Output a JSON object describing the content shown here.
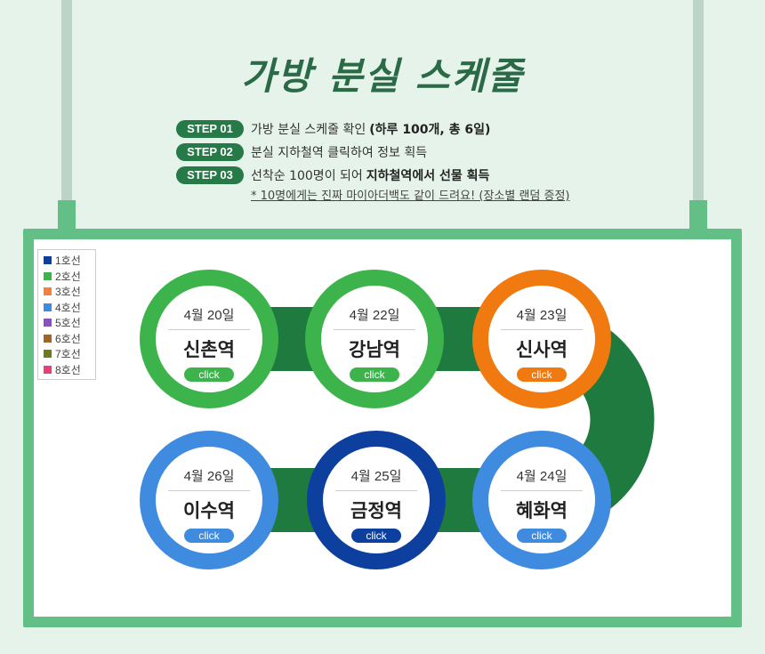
{
  "title": "가방 분실 스케줄",
  "steps": [
    {
      "badge": "STEP 01",
      "text": "가방 분실 스케줄 확인",
      "bold": "(하루 100개, 총 6일)"
    },
    {
      "badge": "STEP 02",
      "text": "분실 지하철역 클릭하여 정보 획득",
      "bold": ""
    },
    {
      "badge": "STEP 03",
      "text": "선착순 100명이 되어",
      "bold": "지하철역에서 선물 획득"
    }
  ],
  "note": "* 10명에게는 진짜 마이아더백도 같이 드려요! (장소별 랜덤 증정)",
  "legend": [
    {
      "label": "1호선",
      "color": "#0d3f9f"
    },
    {
      "label": "2호선",
      "color": "#3cb44b"
    },
    {
      "label": "3호선",
      "color": "#f5803e"
    },
    {
      "label": "4호선",
      "color": "#3f8be0"
    },
    {
      "label": "5호선",
      "color": "#8b4fc4"
    },
    {
      "label": "6호선",
      "color": "#a0632a"
    },
    {
      "label": "7호선",
      "color": "#6b7a1b"
    },
    {
      "label": "8호선",
      "color": "#e5407a"
    }
  ],
  "track_color": "#1e7a3f",
  "stations": [
    {
      "date": "4월 20일",
      "name": "신촌역",
      "click": "click",
      "color": "#3cb44b"
    },
    {
      "date": "4월 22일",
      "name": "강남역",
      "click": "click",
      "color": "#3cb44b"
    },
    {
      "date": "4월 23일",
      "name": "신사역",
      "click": "click",
      "color": "#f07a10"
    },
    {
      "date": "4월 24일",
      "name": "혜화역",
      "click": "click",
      "color": "#3f8be0"
    },
    {
      "date": "4월 25일",
      "name": "금정역",
      "click": "click",
      "color": "#0d3f9f"
    },
    {
      "date": "4월 26일",
      "name": "이수역",
      "click": "click",
      "color": "#3f8be0"
    }
  ]
}
